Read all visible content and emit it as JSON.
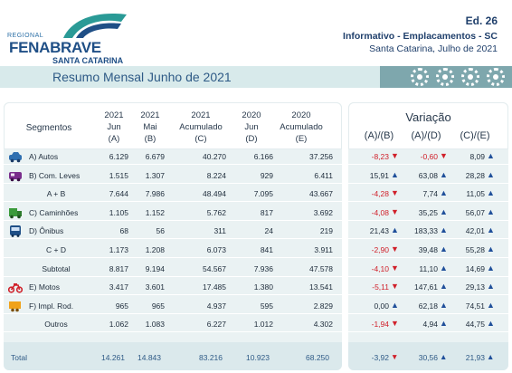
{
  "header": {
    "logo_regional": "REGIONAL",
    "logo_name": "FENABRAVE",
    "logo_sub": "SANTA CATARINA",
    "edition": "Ed. 26",
    "info": "Informativo - Emplacamentos - SC",
    "place_date": "Santa Catarina, Julho de 2021",
    "title": "Resumo Mensal Junho de 2021"
  },
  "colors": {
    "bar": "#d8eaeb",
    "bar_dark": "#7ea7ad",
    "negative": "#d0202a",
    "positive_arrow": "#1f4f9a",
    "brand": "#1f4f86"
  },
  "table": {
    "col_segments": "Segmentos",
    "columns": [
      {
        "l1": "2021",
        "l2": "Jun",
        "l3": "(A)"
      },
      {
        "l1": "2021",
        "l2": "Mai",
        "l3": "(B)"
      },
      {
        "l1": "2021",
        "l2": "Acumulado",
        "l3": "(C)"
      },
      {
        "l1": "2020",
        "l2": "Jun",
        "l3": "(D)"
      },
      {
        "l1": "2020",
        "l2": "Acumulado",
        "l3": "(E)"
      }
    ],
    "variation_title": "Variação",
    "variation_cols": [
      "(A)/(B)",
      "(A)/(D)",
      "(C)/(E)"
    ],
    "rows": [
      {
        "label": "A) Autos",
        "icon": "car-icon",
        "vals": [
          "6.129",
          "6.679",
          "40.270",
          "6.166",
          "37.256"
        ],
        "var": [
          "-8,23",
          "-0,60",
          "8,09"
        ],
        "dir": [
          "down",
          "down",
          "up"
        ]
      },
      {
        "label": "B) Com. Leves",
        "icon": "van-icon",
        "vals": [
          "1.515",
          "1.307",
          "8.224",
          "929",
          "6.411"
        ],
        "var": [
          "15,91",
          "63,08",
          "28,28"
        ],
        "dir": [
          "up",
          "up",
          "up"
        ]
      },
      {
        "label": "A + B",
        "icon": "",
        "vals": [
          "7.644",
          "7.986",
          "48.494",
          "7.095",
          "43.667"
        ],
        "var": [
          "-4,28",
          "7,74",
          "11,05"
        ],
        "dir": [
          "down",
          "up",
          "up"
        ]
      },
      {
        "label": "C) Caminhões",
        "icon": "truck-icon",
        "vals": [
          "1.105",
          "1.152",
          "5.762",
          "817",
          "3.692"
        ],
        "var": [
          "-4,08",
          "35,25",
          "56,07"
        ],
        "dir": [
          "down",
          "up",
          "up"
        ]
      },
      {
        "label": "D) Ônibus",
        "icon": "bus-icon",
        "vals": [
          "68",
          "56",
          "311",
          "24",
          "219"
        ],
        "var": [
          "21,43",
          "183,33",
          "42,01"
        ],
        "dir": [
          "up",
          "up",
          "up"
        ]
      },
      {
        "label": "C + D",
        "icon": "",
        "vals": [
          "1.173",
          "1.208",
          "6.073",
          "841",
          "3.911"
        ],
        "var": [
          "-2,90",
          "39,48",
          "55,28"
        ],
        "dir": [
          "down",
          "up",
          "up"
        ]
      },
      {
        "label": "Subtotal",
        "icon": "",
        "vals": [
          "8.817",
          "9.194",
          "54.567",
          "7.936",
          "47.578"
        ],
        "var": [
          "-4,10",
          "11,10",
          "14,69"
        ],
        "dir": [
          "down",
          "up",
          "up"
        ]
      },
      {
        "label": "E) Motos",
        "icon": "motorcycle-icon",
        "vals": [
          "3.417",
          "3.601",
          "17.485",
          "1.380",
          "13.541"
        ],
        "var": [
          "-5,11",
          "147,61",
          "29,13"
        ],
        "dir": [
          "down",
          "up",
          "up"
        ]
      },
      {
        "label": "F) Impl. Rod.",
        "icon": "trailer-icon",
        "vals": [
          "965",
          "965",
          "4.937",
          "595",
          "2.829"
        ],
        "var": [
          "0,00",
          "62,18",
          "74,51"
        ],
        "dir": [
          "up",
          "up",
          "up"
        ]
      },
      {
        "label": "Outros",
        "icon": "",
        "vals": [
          "1.062",
          "1.083",
          "6.227",
          "1.012",
          "4.302"
        ],
        "var": [
          "-1,94",
          "4,94",
          "44,75"
        ],
        "dir": [
          "down",
          "up",
          "up"
        ]
      }
    ],
    "total": {
      "label": "Total",
      "vals": [
        "14.261",
        "14.843",
        "83.216",
        "10.923",
        "68.250"
      ],
      "var": [
        "-3,92",
        "30,56",
        "21,93"
      ],
      "dir": [
        "down",
        "up",
        "up"
      ]
    }
  }
}
